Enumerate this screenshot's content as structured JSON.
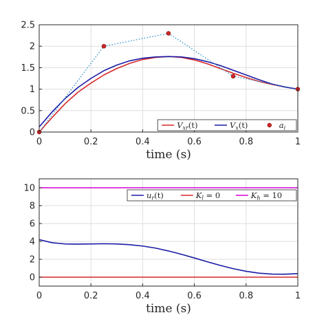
{
  "chart_data": [
    {
      "type": "line",
      "xlabel": "time (s)",
      "ylabel": "",
      "xlim": [
        0,
        1
      ],
      "ylim": [
        0,
        2.5
      ],
      "xticks": [
        "0",
        "0.2",
        "0.4",
        "0.6",
        "0.8",
        "1"
      ],
      "yticks": [
        "0",
        "0.5",
        "1",
        "1.5",
        "2",
        "2.5"
      ],
      "grid": true,
      "legend_position": "bottom-right",
      "legend_orientation": "horizontal",
      "series": [
        {
          "key": "vxr",
          "legend_main": "V",
          "legend_sub": "xr",
          "legend_tail": "(t)",
          "color": "#d62728",
          "style": "solid",
          "x": [
            0,
            0.05,
            0.1,
            0.15,
            0.2,
            0.25,
            0.3,
            0.35,
            0.4,
            0.45,
            0.5,
            0.55,
            0.6,
            0.65,
            0.7,
            0.75,
            0.8,
            0.85,
            0.9,
            0.95,
            1.0
          ],
          "y": [
            0.0,
            0.34,
            0.66,
            0.93,
            1.14,
            1.33,
            1.48,
            1.6,
            1.69,
            1.74,
            1.76,
            1.74,
            1.68,
            1.59,
            1.48,
            1.37,
            1.27,
            1.18,
            1.11,
            1.05,
            1.0
          ]
        },
        {
          "key": "vx",
          "legend_main": "V",
          "legend_sub": "x",
          "legend_tail": "(t)",
          "color": "#1a1aa6",
          "style": "solid",
          "x": [
            0,
            0.05,
            0.1,
            0.15,
            0.2,
            0.25,
            0.3,
            0.35,
            0.4,
            0.45,
            0.5,
            0.55,
            0.6,
            0.65,
            0.7,
            0.75,
            0.8,
            0.85,
            0.9,
            0.95,
            1.0
          ],
          "y": [
            0.12,
            0.47,
            0.78,
            1.04,
            1.25,
            1.43,
            1.56,
            1.66,
            1.72,
            1.75,
            1.76,
            1.75,
            1.71,
            1.64,
            1.55,
            1.44,
            1.33,
            1.22,
            1.12,
            1.05,
            1.0
          ]
        },
        {
          "key": "ai",
          "legend_main": "a",
          "legend_sub": "i",
          "legend_tail": "",
          "color": "#d62728",
          "line_color": "#2a8fc9",
          "style": "dotted-with-markers",
          "x": [
            0,
            0.25,
            0.5,
            0.75,
            1.0
          ],
          "y": [
            0,
            2.0,
            2.3,
            1.3,
            1.0
          ]
        }
      ]
    },
    {
      "type": "line",
      "xlabel": "time (s)",
      "ylabel": "",
      "xlim": [
        0,
        1
      ],
      "ylim": [
        -1,
        11
      ],
      "xticks": [
        "0",
        "0.2",
        "0.4",
        "0.6",
        "0.8",
        "1"
      ],
      "yticks": [
        "0",
        "2",
        "4",
        "6",
        "8",
        "10"
      ],
      "grid": true,
      "legend_position": "top-right",
      "legend_orientation": "horizontal",
      "series": [
        {
          "key": "ur",
          "legend_main": "u",
          "legend_sub": "r",
          "legend_tail": "(t)",
          "color": "#1a1aa6",
          "style": "solid",
          "x": [
            0,
            0.05,
            0.1,
            0.15,
            0.2,
            0.25,
            0.3,
            0.35,
            0.4,
            0.45,
            0.5,
            0.55,
            0.6,
            0.65,
            0.7,
            0.75,
            0.8,
            0.85,
            0.9,
            0.95,
            1.0
          ],
          "y": [
            4.2,
            3.85,
            3.72,
            3.7,
            3.72,
            3.74,
            3.72,
            3.63,
            3.48,
            3.25,
            2.93,
            2.56,
            2.15,
            1.72,
            1.32,
            0.95,
            0.66,
            0.45,
            0.34,
            0.33,
            0.4
          ]
        },
        {
          "key": "kl",
          "legend_main": "K",
          "legend_sub": "l",
          "legend_tail": " = 0",
          "color": "#d62728",
          "style": "solid",
          "x": [
            0,
            1
          ],
          "y": [
            0,
            0
          ]
        },
        {
          "key": "kh",
          "legend_main": "K",
          "legend_sub": "h",
          "legend_tail": " = 10",
          "color": "#d400d4",
          "style": "solid",
          "x": [
            0,
            1
          ],
          "y": [
            10,
            10
          ]
        }
      ]
    }
  ]
}
